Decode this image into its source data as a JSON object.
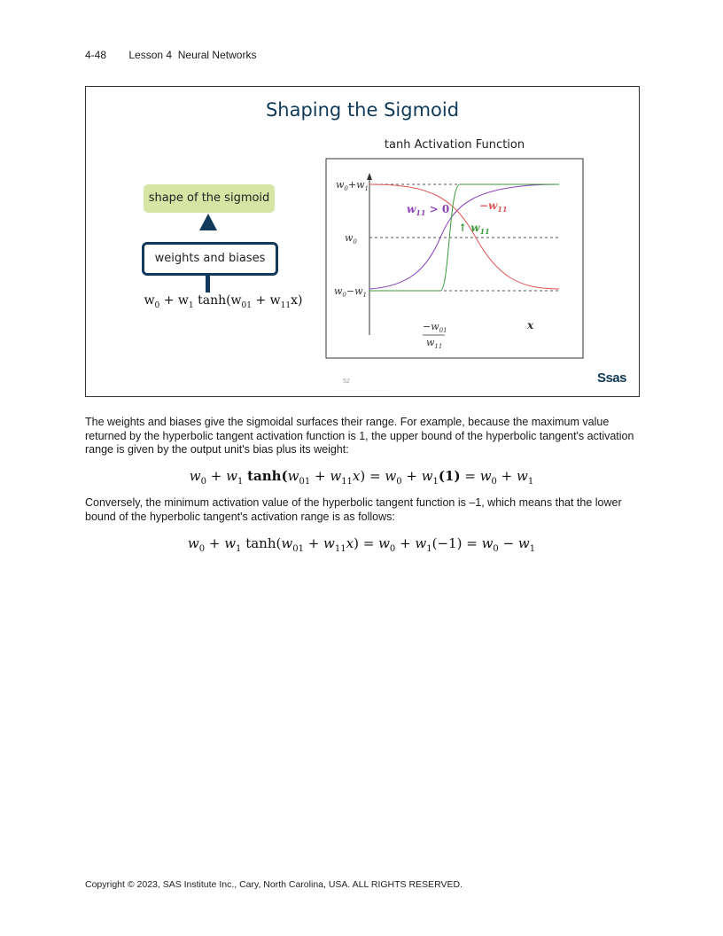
{
  "header": {
    "page": "4-48",
    "lesson": "Lesson 4  Neural Networks"
  },
  "slide": {
    "title": "Shaping the Sigmoid",
    "chart_title": "tanh Activation Function",
    "shape_box": "shape of the sigmoid",
    "weights_box": "weights and biases",
    "slide_number": "52",
    "logo": "Ssas"
  },
  "chart_data": {
    "type": "line",
    "title": "tanh Activation Function",
    "xlabel": "x",
    "y_tick_labels": [
      "w0+w1",
      "w0",
      "w0−w1"
    ],
    "x_tick_label": "−w01 / w11",
    "series": [
      {
        "name": "w11 > 0",
        "color": "#8a44b8"
      },
      {
        "name": "−w11",
        "color": "#e05656"
      },
      {
        "name": "w11",
        "color": "#3a9a3a"
      }
    ],
    "annotations": [
      "w11 > 0",
      "−w11",
      "↑ w11"
    ],
    "grid": "dashed reference lines at w0+w1, w0, w0−w1"
  },
  "body": {
    "para1": "The weights and biases give the sigmoidal surfaces their range. For example, because the maximum value returned by the hyperbolic tangent activation function is 1, the upper bound of the hyperbolic tangent's activation range is given by the output unit's bias plus its weight:",
    "para2": "Conversely, the minimum activation value of the hyperbolic tangent function is –1, which means that the lower bound of the hyperbolic tangent's activation range is as follows:"
  },
  "footer": "Copyright © 2023, SAS Institute Inc., Cary, North Carolina, USA. ALL RIGHTS RESERVED."
}
